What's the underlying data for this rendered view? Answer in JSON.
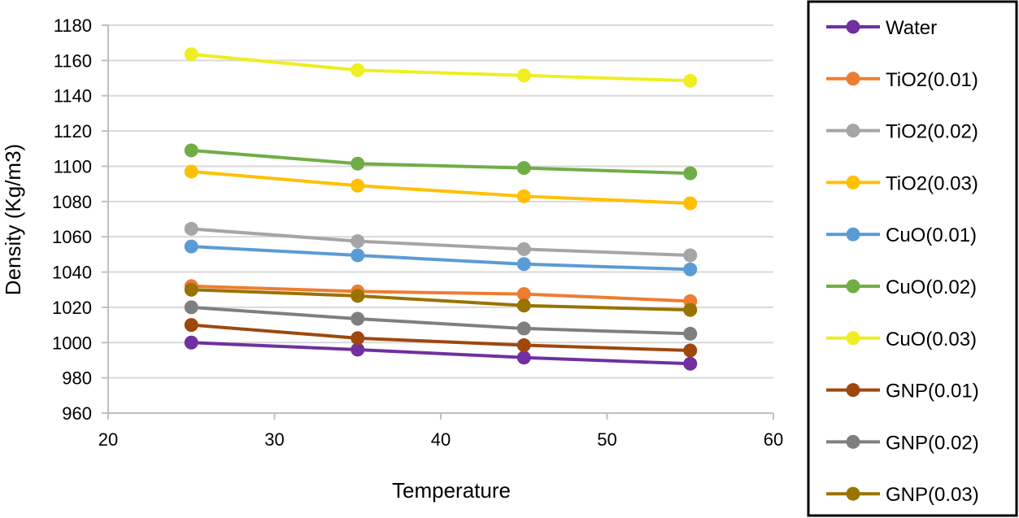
{
  "chart_data": {
    "type": "line",
    "title": "",
    "xlabel": "Temperature",
    "ylabel": "Density (Kg/m3)",
    "xlim": [
      20,
      60
    ],
    "ylim": [
      960,
      1180
    ],
    "xticks": [
      20,
      30,
      40,
      50,
      60
    ],
    "yticks": [
      960,
      980,
      1000,
      1020,
      1040,
      1060,
      1080,
      1100,
      1120,
      1140,
      1160,
      1180
    ],
    "grid": "horizontal",
    "legend_position": "right",
    "x": [
      25,
      35,
      45,
      55
    ],
    "series": [
      {
        "name": "Water",
        "color": "#7030A0",
        "values": [
          1000,
          996,
          991.5,
          988
        ]
      },
      {
        "name": "TiO2(0.01)",
        "color": "#ED7D31",
        "values": [
          1032,
          1029,
          1027.5,
          1023.5
        ]
      },
      {
        "name": "TiO2(0.02)",
        "color": "#A5A5A5",
        "values": [
          1064.5,
          1057.5,
          1053,
          1049.5
        ]
      },
      {
        "name": "TiO2(0.03)",
        "color": "#FFC000",
        "values": [
          1097,
          1089,
          1083,
          1079
        ]
      },
      {
        "name": "CuO(0.01)",
        "color": "#5B9BD5",
        "values": [
          1054.5,
          1049.5,
          1044.5,
          1041.5
        ]
      },
      {
        "name": "CuO(0.02)",
        "color": "#70AD47",
        "values": [
          1109,
          1101.5,
          1099,
          1096
        ]
      },
      {
        "name": "CuO(0.03)",
        "color": "#EEEE22",
        "values": [
          1163.5,
          1154.5,
          1151.5,
          1148.5
        ]
      },
      {
        "name": "GNP(0.01)",
        "color": "#9E480E",
        "values": [
          1010,
          1002.5,
          998.5,
          995.5
        ]
      },
      {
        "name": "GNP(0.02)",
        "color": "#7F7F7F",
        "values": [
          1020,
          1013.5,
          1008,
          1005
        ]
      },
      {
        "name": "GNP(0.03)",
        "color": "#997300",
        "values": [
          1030,
          1026.5,
          1021,
          1018.5
        ]
      }
    ]
  }
}
